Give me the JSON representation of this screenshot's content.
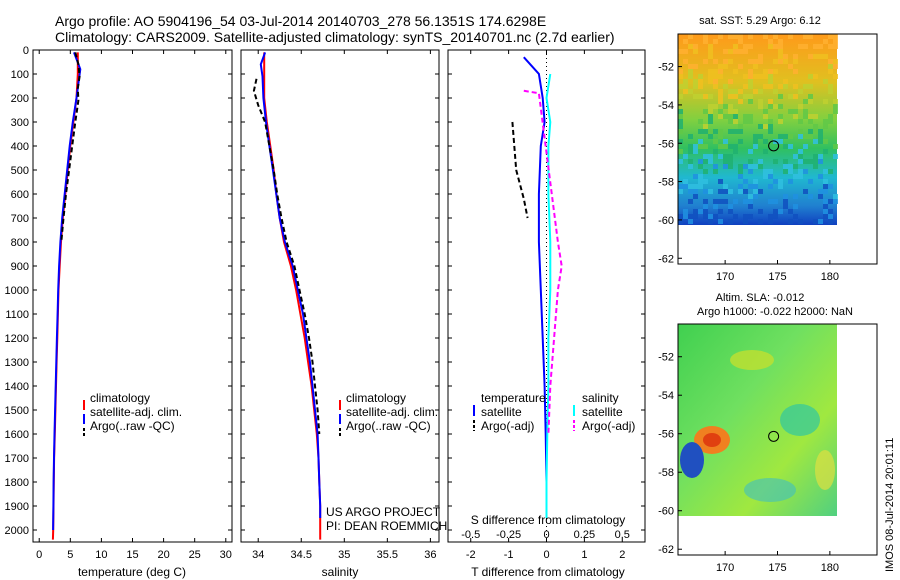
{
  "header": {
    "line1": "Argo profile: AO 5904196_54 03-Jul-2014 20140703_278 56.1351S 174.6298E",
    "line2": "Climatology: CARS2009. Satellite-adjusted climatology: synTS_20140701.nc (2.7d earlier)"
  },
  "colors": {
    "climatology": "#ff0000",
    "satellite": "#0000ff",
    "argo": "#000000",
    "satellite_salinity": "#00ffff",
    "argo_salinity": "#ff00ff"
  },
  "chart_data": [
    {
      "type": "line",
      "panel": "temperature",
      "xlabel": "temperature (deg C)",
      "xlim": [
        -1,
        31
      ],
      "xticks": [
        0,
        5,
        10,
        15,
        20,
        25,
        30
      ],
      "ylim": [
        2050,
        0
      ],
      "yticks": [
        0,
        100,
        200,
        300,
        400,
        500,
        600,
        700,
        800,
        900,
        1000,
        1100,
        1200,
        1300,
        1400,
        1500,
        1600,
        1700,
        1800,
        1900,
        2000
      ],
      "legend": [
        "climatology",
        "satellite-adj. clim.",
        "Argo(..raw -QC)"
      ],
      "legend_position": "lower-right",
      "series": [
        {
          "name": "climatology",
          "color": "#ff0000",
          "style": "solid",
          "points": [
            [
              6.2,
              10
            ],
            [
              6.2,
              100
            ],
            [
              6.0,
              200
            ],
            [
              5.5,
              300
            ],
            [
              5.0,
              400
            ],
            [
              4.6,
              500
            ],
            [
              4.2,
              600
            ],
            [
              3.8,
              700
            ],
            [
              3.5,
              800
            ],
            [
              3.3,
              900
            ],
            [
              3.1,
              1000
            ],
            [
              3.0,
              1100
            ],
            [
              2.9,
              1200
            ],
            [
              2.8,
              1300
            ],
            [
              2.7,
              1400
            ],
            [
              2.6,
              1500
            ],
            [
              2.5,
              1600
            ],
            [
              2.4,
              1700
            ],
            [
              2.35,
              1800
            ],
            [
              2.3,
              1900
            ],
            [
              2.25,
              2000
            ],
            [
              2.2,
              2040
            ]
          ]
        },
        {
          "name": "satellite-adj. clim.",
          "color": "#0000ff",
          "style": "solid",
          "points": [
            [
              5.6,
              10
            ],
            [
              6.6,
              80
            ],
            [
              6.4,
              120
            ],
            [
              6.0,
              200
            ],
            [
              5.4,
              300
            ],
            [
              4.9,
              400
            ],
            [
              4.5,
              500
            ],
            [
              4.1,
              600
            ],
            [
              3.7,
              700
            ],
            [
              3.4,
              800
            ],
            [
              3.2,
              900
            ],
            [
              3.05,
              1000
            ],
            [
              2.95,
              1100
            ],
            [
              2.85,
              1200
            ],
            [
              2.75,
              1300
            ],
            [
              2.65,
              1400
            ],
            [
              2.55,
              1500
            ],
            [
              2.45,
              1600
            ],
            [
              2.38,
              1700
            ],
            [
              2.32,
              1800
            ],
            [
              2.28,
              1900
            ],
            [
              2.24,
              2000
            ]
          ]
        },
        {
          "name": "Argo(..raw -QC)",
          "color": "#000000",
          "style": "dashed",
          "points": [
            [
              5.8,
              10
            ],
            [
              6.3,
              60
            ],
            [
              6.5,
              110
            ],
            [
              6.2,
              160
            ],
            [
              6.3,
              210
            ],
            [
              5.8,
              300
            ],
            [
              5.3,
              400
            ],
            [
              4.8,
              500
            ],
            [
              4.3,
              600
            ],
            [
              3.9,
              700
            ],
            [
              3.55,
              800
            ]
          ]
        }
      ]
    },
    {
      "type": "line",
      "panel": "salinity",
      "xlabel": "salinity",
      "xlim": [
        33.8,
        36.1
      ],
      "xticks": [
        34,
        34.5,
        35,
        35.5,
        36
      ],
      "ylim": [
        2050,
        0
      ],
      "legend": [
        "climatology",
        "satellite-adj. clim.",
        "Argo(..raw -QC)"
      ],
      "legend_position": "lower-right",
      "annotations": [
        "US ARGO PROJECT",
        "PI: DEAN ROEMMICH"
      ],
      "series": [
        {
          "name": "climatology",
          "color": "#ff0000",
          "style": "solid",
          "points": [
            [
              34.07,
              10
            ],
            [
              34.07,
              100
            ],
            [
              34.07,
              200
            ],
            [
              34.1,
              300
            ],
            [
              34.14,
              400
            ],
            [
              34.18,
              500
            ],
            [
              34.21,
              600
            ],
            [
              34.25,
              700
            ],
            [
              34.3,
              800
            ],
            [
              34.38,
              900
            ],
            [
              34.44,
              1000
            ],
            [
              34.49,
              1100
            ],
            [
              34.54,
              1200
            ],
            [
              34.58,
              1300
            ],
            [
              34.62,
              1400
            ],
            [
              34.65,
              1500
            ],
            [
              34.68,
              1600
            ],
            [
              34.7,
              1700
            ],
            [
              34.71,
              1800
            ],
            [
              34.72,
              1900
            ],
            [
              34.72,
              2000
            ],
            [
              34.72,
              2040
            ]
          ]
        },
        {
          "name": "satellite-adj. clim.",
          "color": "#0000ff",
          "style": "solid",
          "points": [
            [
              34.08,
              10
            ],
            [
              34.03,
              60
            ],
            [
              34.05,
              110
            ],
            [
              34.06,
              200
            ],
            [
              34.09,
              300
            ],
            [
              34.13,
              400
            ],
            [
              34.17,
              500
            ],
            [
              34.21,
              600
            ],
            [
              34.25,
              700
            ],
            [
              34.31,
              800
            ],
            [
              34.4,
              900
            ],
            [
              34.46,
              1000
            ],
            [
              34.52,
              1100
            ],
            [
              34.56,
              1200
            ],
            [
              34.6,
              1300
            ],
            [
              34.63,
              1400
            ],
            [
              34.66,
              1500
            ],
            [
              34.69,
              1600
            ],
            [
              34.7,
              1700
            ],
            [
              34.71,
              1800
            ],
            [
              34.72,
              1900
            ],
            [
              34.72,
              1950
            ]
          ]
        },
        {
          "name": "Argo(..raw -QC)",
          "color": "#000000",
          "style": "dashed",
          "points": [
            [
              33.98,
              120
            ],
            [
              33.95,
              170
            ],
            [
              34.0,
              230
            ],
            [
              34.08,
              300
            ],
            [
              34.13,
              400
            ],
            [
              34.18,
              500
            ],
            [
              34.22,
              600
            ],
            [
              34.27,
              700
            ],
            [
              34.33,
              800
            ],
            [
              34.42,
              900
            ],
            [
              34.48,
              1000
            ],
            [
              34.54,
              1100
            ],
            [
              34.59,
              1200
            ],
            [
              34.63,
              1300
            ],
            [
              34.66,
              1400
            ],
            [
              34.69,
              1500
            ],
            [
              34.71,
              1600
            ]
          ]
        }
      ]
    },
    {
      "type": "line",
      "panel": "differences",
      "xlabel": "T difference from climatology",
      "xlabel2": "S difference from climatology",
      "xlim": [
        -2.6,
        2.6
      ],
      "xticks": [
        -2,
        -1,
        0,
        1,
        2
      ],
      "xticks2_labels": [
        "-0.5",
        "-0.25",
        "0",
        "0.25",
        "0.5"
      ],
      "xticks2_values": [
        -2,
        -1,
        0,
        1,
        2
      ],
      "ylim": [
        2050,
        0
      ],
      "legend_temperature": {
        "title": "temperature",
        "entries": [
          "satellite",
          "Argo(-adj)"
        ]
      },
      "legend_salinity": {
        "title": "salinity",
        "entries": [
          "satellite",
          "Argo(-adj)"
        ]
      },
      "series": [
        {
          "name": "satellite",
          "group": "temperature",
          "color": "#0000ff",
          "style": "solid",
          "points": [
            [
              -0.6,
              30
            ],
            [
              -0.2,
              100
            ],
            [
              -0.1,
              200
            ],
            [
              -0.05,
              300
            ],
            [
              -0.15,
              400
            ],
            [
              -0.2,
              600
            ],
            [
              -0.2,
              800
            ],
            [
              -0.15,
              1000
            ],
            [
              -0.1,
              1200
            ],
            [
              -0.05,
              1400
            ],
            [
              -0.02,
              1600
            ],
            [
              0.0,
              1800
            ],
            [
              0.0,
              1950
            ]
          ]
        },
        {
          "name": "Argo(-adj)",
          "group": "temperature",
          "color": "#000000",
          "style": "dashed",
          "points": [
            [
              -0.9,
              300
            ],
            [
              -0.8,
              500
            ],
            [
              -0.6,
              620
            ],
            [
              -0.5,
              700
            ]
          ]
        },
        {
          "name": "satellite",
          "group": "salinity",
          "color": "#00ffff",
          "style": "solid",
          "points": [
            [
              0.1,
              100
            ],
            [
              0.0,
              200
            ],
            [
              0.1,
              300
            ],
            [
              0.05,
              400
            ],
            [
              0.05,
              600
            ],
            [
              0.1,
              800
            ],
            [
              0.1,
              1000
            ],
            [
              0.05,
              1200
            ],
            [
              0.05,
              1400
            ],
            [
              0.02,
              1600
            ],
            [
              0.0,
              1800
            ],
            [
              0.0,
              1950
            ]
          ]
        },
        {
          "name": "Argo(-adj)",
          "group": "salinity",
          "color": "#ff00ff",
          "style": "dashed",
          "points": [
            [
              -0.6,
              170
            ],
            [
              -0.2,
              180
            ],
            [
              0.3,
              800
            ],
            [
              0.4,
              900
            ],
            [
              0.3,
              1000
            ],
            [
              0.2,
              1200
            ],
            [
              0.1,
              1400
            ],
            [
              0.05,
              1600
            ]
          ]
        }
      ]
    },
    {
      "type": "heatmap",
      "panel": "sst_map",
      "title": "sat. SST: 5.29 Argo: 6.12",
      "xticks": [
        170,
        175,
        180
      ],
      "yticks": [
        -52,
        -54,
        -56,
        -58,
        -60,
        -62
      ],
      "marker": {
        "lon": 174.6298,
        "lat": -56.1351
      }
    },
    {
      "type": "heatmap",
      "panel": "sla_map",
      "title": "Altim. SLA: -0.012",
      "subtitle": "Argo h1000: -0.022 h2000: NaN",
      "xticks": [
        170,
        175,
        180
      ],
      "yticks": [
        -52,
        -54,
        -56,
        -58,
        -60,
        -62
      ],
      "marker": {
        "lon": 174.6298,
        "lat": -56.1351
      }
    }
  ],
  "stamp": "IMOS 08-Jul-2014 20:01:11"
}
